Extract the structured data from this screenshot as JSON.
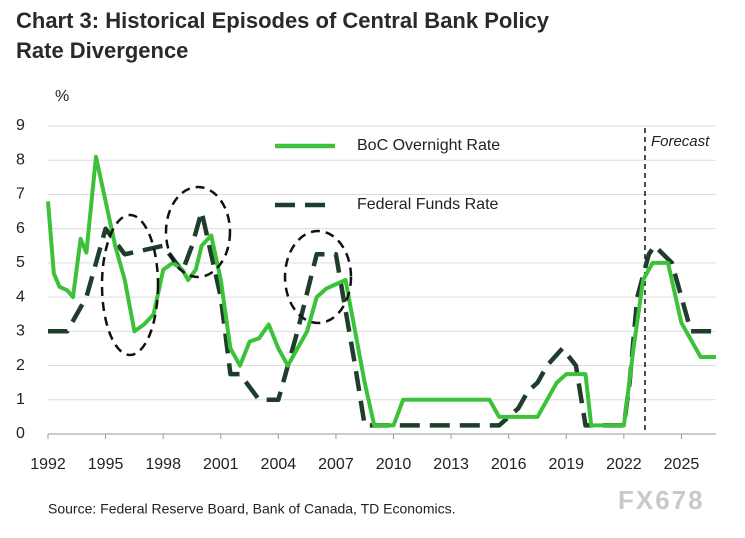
{
  "chart_data": {
    "type": "line",
    "title": [
      "Chart 3: Historical Episodes of Central Bank Policy",
      "Rate Divergence"
    ],
    "y_axis_label": "%",
    "source": "Source: Federal Reserve Board, Bank of Canada, TD Economics.",
    "watermark": "FX678",
    "annotation": "Forecast",
    "forecast_start": 2023.1,
    "xlim": [
      1992,
      2026.8
    ],
    "xticks": [
      1992,
      1995,
      1998,
      2001,
      2004,
      2007,
      2010,
      2013,
      2016,
      2019,
      2022,
      2025
    ],
    "ylim": [
      0,
      9
    ],
    "yticks": [
      0,
      1,
      2,
      3,
      4,
      5,
      6,
      7,
      8,
      9
    ],
    "grid": true,
    "series": [
      {
        "name": "BoC Overnight Rate",
        "color": "#3cc13b",
        "dash": false,
        "x": [
          1992,
          1992.3,
          1992.6,
          1993,
          1993.3,
          1993.7,
          1994,
          1994.5,
          1995,
          1995.5,
          1996,
          1996.5,
          1997,
          1997.5,
          1998,
          1998.5,
          1999,
          1999.3,
          1999.7,
          2000,
          2000.5,
          2001,
          2001.5,
          2002,
          2002.5,
          2003,
          2003.5,
          2004,
          2004.5,
          2005,
          2005.5,
          2006,
          2006.5,
          2007.5,
          2008,
          2008.5,
          2009,
          2010,
          2010.5,
          2015,
          2015.5,
          2017.5,
          2018,
          2018.5,
          2019,
          2020,
          2020.3,
          2022,
          2022.5,
          2023,
          2023.5,
          2024.3,
          2025,
          2025.5,
          2026,
          2026.8
        ],
        "values": [
          6.8,
          4.7,
          4.3,
          4.2,
          4.0,
          5.7,
          5.3,
          8.1,
          6.8,
          5.5,
          4.5,
          3.0,
          3.2,
          3.5,
          4.8,
          5.0,
          4.8,
          4.5,
          4.8,
          5.5,
          5.8,
          4.5,
          2.5,
          2.0,
          2.7,
          2.8,
          3.2,
          2.5,
          2.0,
          2.5,
          3.0,
          4.0,
          4.25,
          4.5,
          3.0,
          1.5,
          0.25,
          0.25,
          1.0,
          1.0,
          0.5,
          0.5,
          1.0,
          1.5,
          1.75,
          1.75,
          0.25,
          0.25,
          2.5,
          4.5,
          5.0,
          5.0,
          3.25,
          2.75,
          2.25,
          2.25
        ]
      },
      {
        "name": "Federal Funds Rate",
        "color": "#1f3d2b",
        "dash": true,
        "x": [
          1992,
          1993,
          1994,
          1995,
          1996,
          1998,
          1999,
          1999.5,
          2000,
          2001,
          2001.5,
          2002,
          2003,
          2004,
          2005,
          2006,
          2007,
          2008,
          2008.5,
          2015.5,
          2016,
          2016.5,
          2017,
          2017.5,
          2018,
          2018.8,
          2019.5,
          2020,
          2022,
          2022.3,
          2022.7,
          2023.3,
          2023.6,
          2024.5,
          2025,
          2025.5,
          2026.8
        ],
        "values": [
          3.0,
          3.0,
          4.0,
          6.0,
          5.25,
          5.5,
          4.75,
          5.5,
          6.5,
          4.0,
          1.75,
          1.75,
          1.0,
          1.0,
          3.0,
          5.25,
          5.25,
          2.0,
          0.25,
          0.25,
          0.5,
          0.75,
          1.25,
          1.5,
          2.0,
          2.5,
          2.0,
          0.25,
          0.25,
          1.5,
          4.0,
          5.25,
          5.5,
          5.0,
          4.0,
          3.0,
          3.0
        ]
      }
    ]
  }
}
